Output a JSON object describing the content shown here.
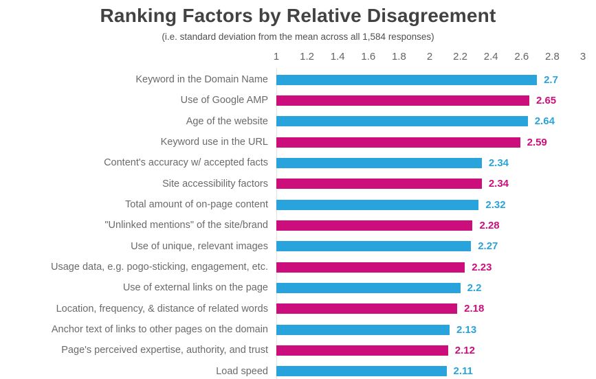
{
  "title": "Ranking Factors by Relative Disagreement",
  "subtitle": "(i.e. standard deviation from the mean across all 1,584 responses)",
  "colors": {
    "blue": "#29A3DB",
    "pink": "#CC0E7C",
    "title_text": "#424242",
    "subtitle_text": "#4f4f4f",
    "label_text": "#6a6a6a",
    "tick_text": "#636363",
    "axis_line": "#e2e2e2"
  },
  "chart_data": {
    "type": "bar",
    "orientation": "horizontal",
    "title": "Ranking Factors by Relative Disagreement",
    "subtitle": "(i.e. standard deviation from the mean across all 1,584 responses)",
    "xlim": [
      1,
      3
    ],
    "x_ticks": [
      1,
      1.2,
      1.4,
      1.6,
      1.8,
      2,
      2.2,
      2.4,
      2.6,
      2.8,
      3
    ],
    "x_tick_labels": [
      "1",
      "1.2",
      "1.4",
      "1.6",
      "1.8",
      "2",
      "2.2",
      "2.4",
      "2.6",
      "2.8",
      "3"
    ],
    "grid": false,
    "legend": "none",
    "rows": [
      {
        "label": "Keyword in the Domain Name",
        "value": 2.7,
        "display": "2.7",
        "color": "blue"
      },
      {
        "label": "Use of Google AMP",
        "value": 2.65,
        "display": "2.65",
        "color": "pink"
      },
      {
        "label": "Age of the website",
        "value": 2.64,
        "display": "2.64",
        "color": "blue"
      },
      {
        "label": "Keyword use in the URL",
        "value": 2.59,
        "display": "2.59",
        "color": "pink"
      },
      {
        "label": "Content's accuracy w/ accepted facts",
        "value": 2.34,
        "display": "2.34",
        "color": "blue"
      },
      {
        "label": "Site accessibility factors",
        "value": 2.34,
        "display": "2.34",
        "color": "pink"
      },
      {
        "label": "Total amount of on-page content",
        "value": 2.32,
        "display": "2.32",
        "color": "blue"
      },
      {
        "label": "\"Unlinked mentions\" of the site/brand",
        "value": 2.28,
        "display": "2.28",
        "color": "pink"
      },
      {
        "label": "Use of unique, relevant images",
        "value": 2.27,
        "display": "2.27",
        "color": "blue"
      },
      {
        "label": "Usage data, e.g. pogo-sticking, engagement, etc.",
        "value": 2.23,
        "display": "2.23",
        "color": "pink"
      },
      {
        "label": "Use of external links on the page",
        "value": 2.2,
        "display": "2.2",
        "color": "blue"
      },
      {
        "label": "Location, frequency, & distance of related words",
        "value": 2.18,
        "display": "2.18",
        "color": "pink"
      },
      {
        "label": "Anchor text of links to other pages on the domain",
        "value": 2.13,
        "display": "2.13",
        "color": "blue"
      },
      {
        "label": "Page's perceived expertise, authority, and trust",
        "value": 2.12,
        "display": "2.12",
        "color": "pink"
      },
      {
        "label": "Load speed",
        "value": 2.11,
        "display": "2.11",
        "color": "blue"
      }
    ]
  }
}
